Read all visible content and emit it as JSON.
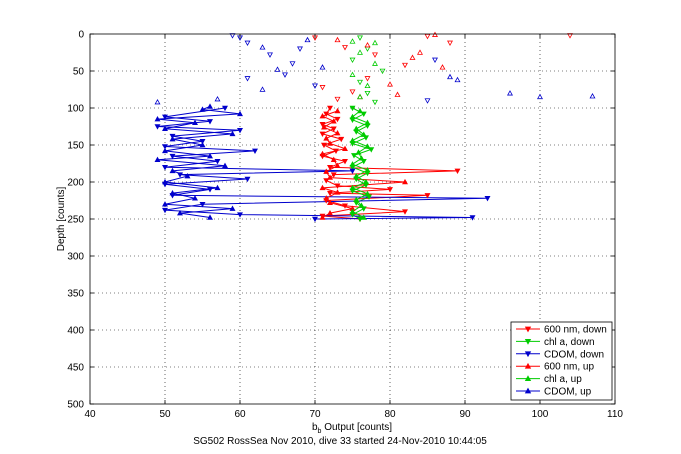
{
  "chart_data": {
    "type": "scatter",
    "title": "",
    "caption": "SG502 RossSea Nov 2010, dive 33 started 24-Nov-2010 10:44:05",
    "xlabel_main": "b",
    "xlabel_sub": "b",
    "xlabel_rest": " Output [counts]",
    "ylabel": "Depth [counts]",
    "xlim": [
      40,
      110
    ],
    "ylim": [
      0,
      500
    ],
    "y_reversed": true,
    "grid": true,
    "xticks": [
      "40",
      "50",
      "60",
      "70",
      "80",
      "90",
      "100",
      "110"
    ],
    "yticks": [
      "0",
      "50",
      "100",
      "150",
      "200",
      "250",
      "300",
      "350",
      "400",
      "450",
      "500"
    ],
    "legend_position": "bottom-right",
    "series": [
      {
        "name": "600 nm, down",
        "color": "#ff0000",
        "marker": "triangle-down",
        "lines_depth_min": 95,
        "lines_depth_max": 250,
        "points": [
          [
            72,
            100
          ],
          [
            71.5,
            108
          ],
          [
            73,
            115
          ],
          [
            71,
            122
          ],
          [
            72.5,
            128
          ],
          [
            71,
            135
          ],
          [
            73.5,
            142
          ],
          [
            71.2,
            150
          ],
          [
            72.8,
            158
          ],
          [
            71,
            165
          ],
          [
            74,
            172
          ],
          [
            72,
            180
          ],
          [
            89,
            185
          ],
          [
            72.5,
            190
          ],
          [
            71.5,
            198
          ],
          [
            73,
            205
          ],
          [
            80,
            210
          ],
          [
            72,
            215
          ],
          [
            85,
            218
          ],
          [
            71.5,
            225
          ],
          [
            74,
            232
          ],
          [
            82,
            240
          ],
          [
            71,
            246
          ],
          [
            76,
            250
          ],
          [
            70,
            5
          ],
          [
            74,
            18
          ],
          [
            78,
            28
          ],
          [
            82,
            42
          ],
          [
            77,
            60
          ],
          [
            75,
            78
          ],
          [
            73,
            88
          ],
          [
            85,
            3
          ],
          [
            88,
            12
          ],
          [
            104,
            2
          ],
          [
            71,
            72
          ]
        ]
      },
      {
        "name": "chl a, down",
        "color": "#00cc00",
        "marker": "triangle-down",
        "lines_depth_min": 95,
        "lines_depth_max": 250,
        "points": [
          [
            75,
            100
          ],
          [
            76.5,
            108
          ],
          [
            75,
            116
          ],
          [
            77,
            124
          ],
          [
            75.5,
            132
          ],
          [
            76.8,
            140
          ],
          [
            75,
            148
          ],
          [
            77.5,
            156
          ],
          [
            75.2,
            164
          ],
          [
            76.5,
            172
          ],
          [
            75,
            180
          ],
          [
            77,
            188
          ],
          [
            75.5,
            196
          ],
          [
            76.8,
            204
          ],
          [
            75,
            212
          ],
          [
            77.2,
            220
          ],
          [
            75.5,
            228
          ],
          [
            76.5,
            236
          ],
          [
            75,
            244
          ],
          [
            76,
            250
          ],
          [
            76,
            5
          ],
          [
            77,
            20
          ],
          [
            75,
            35
          ],
          [
            79,
            50
          ],
          [
            76,
            65
          ],
          [
            77,
            80
          ],
          [
            78,
            92
          ]
        ]
      },
      {
        "name": "CDOM, down",
        "color": "#0000cc",
        "marker": "triangle-down",
        "lines_depth_min": 95,
        "lines_depth_max": 250,
        "points": [
          [
            58,
            100
          ],
          [
            50,
            112
          ],
          [
            56,
            118
          ],
          [
            49,
            125
          ],
          [
            60,
            130
          ],
          [
            51,
            138
          ],
          [
            55,
            145
          ],
          [
            50,
            152
          ],
          [
            62,
            158
          ],
          [
            51,
            165
          ],
          [
            57,
            172
          ],
          [
            50,
            180
          ],
          [
            75,
            185
          ],
          [
            52,
            190
          ],
          [
            61,
            196
          ],
          [
            50,
            203
          ],
          [
            56,
            210
          ],
          [
            51,
            218
          ],
          [
            93,
            222
          ],
          [
            55,
            230
          ],
          [
            50,
            238
          ],
          [
            60,
            244
          ],
          [
            91,
            248
          ],
          [
            70,
            250
          ],
          [
            59,
            2
          ],
          [
            60,
            5
          ],
          [
            61,
            12
          ],
          [
            64,
            28
          ],
          [
            67,
            40
          ],
          [
            66,
            55
          ],
          [
            70,
            70
          ],
          [
            85,
            90
          ],
          [
            61,
            60
          ],
          [
            68,
            20
          ],
          [
            86,
            35
          ]
        ]
      },
      {
        "name": "600 nm, up",
        "color": "#ff0000",
        "marker": "triangle-up",
        "lines_depth_min": 95,
        "lines_depth_max": 250,
        "points": [
          [
            73,
            104
          ],
          [
            71,
            111
          ],
          [
            72.5,
            118
          ],
          [
            71.2,
            126
          ],
          [
            73,
            134
          ],
          [
            71.5,
            141
          ],
          [
            72,
            148
          ],
          [
            74,
            155
          ],
          [
            71,
            162
          ],
          [
            72.5,
            170
          ],
          [
            73,
            178
          ],
          [
            71.5,
            186
          ],
          [
            72,
            194
          ],
          [
            82,
            200
          ],
          [
            71,
            208
          ],
          [
            73,
            214
          ],
          [
            71.5,
            222
          ],
          [
            72,
            228
          ],
          [
            75,
            236
          ],
          [
            72,
            242
          ],
          [
            71,
            248
          ],
          [
            73,
            8
          ],
          [
            77,
            15
          ],
          [
            83,
            32
          ],
          [
            87,
            45
          ],
          [
            80,
            68
          ],
          [
            76,
            85
          ],
          [
            84,
            25
          ],
          [
            81,
            82
          ],
          [
            86,
            1
          ]
        ]
      },
      {
        "name": "chl a, up",
        "color": "#00cc00",
        "marker": "triangle-up",
        "lines_depth_min": 95,
        "lines_depth_max": 250,
        "points": [
          [
            76,
            104
          ],
          [
            75,
            112
          ],
          [
            77,
            120
          ],
          [
            75.5,
            128
          ],
          [
            76.5,
            136
          ],
          [
            75,
            144
          ],
          [
            77,
            152
          ],
          [
            75.8,
            160
          ],
          [
            76.2,
            168
          ],
          [
            75,
            176
          ],
          [
            77,
            184
          ],
          [
            75.5,
            192
          ],
          [
            76.8,
            200
          ],
          [
            75,
            208
          ],
          [
            77,
            216
          ],
          [
            75.5,
            224
          ],
          [
            76.2,
            232
          ],
          [
            75,
            240
          ],
          [
            76.5,
            248
          ],
          [
            75,
            10
          ],
          [
            76,
            25
          ],
          [
            78,
            40
          ],
          [
            75,
            55
          ],
          [
            77,
            70
          ],
          [
            76,
            85
          ],
          [
            78,
            12
          ]
        ]
      },
      {
        "name": "CDOM, up",
        "color": "#0000cc",
        "marker": "triangle-up",
        "lines_depth_min": 95,
        "lines_depth_max": 250,
        "points": [
          [
            55,
            102
          ],
          [
            60,
            108
          ],
          [
            49,
            115
          ],
          [
            54,
            120
          ],
          [
            50,
            128
          ],
          [
            59,
            135
          ],
          [
            51,
            142
          ],
          [
            55,
            150
          ],
          [
            50,
            158
          ],
          [
            56,
            165
          ],
          [
            49,
            170
          ],
          [
            58,
            178
          ],
          [
            51,
            185
          ],
          [
            53,
            192
          ],
          [
            50,
            200
          ],
          [
            57,
            208
          ],
          [
            51,
            215
          ],
          [
            54,
            222
          ],
          [
            50,
            230
          ],
          [
            59,
            236
          ],
          [
            52,
            242
          ],
          [
            56,
            248
          ],
          [
            49,
            92
          ],
          [
            56,
            98
          ],
          [
            57,
            88
          ],
          [
            63,
            18
          ],
          [
            65,
            48
          ],
          [
            71,
            45
          ],
          [
            88,
            58
          ],
          [
            89,
            62
          ],
          [
            100,
            85
          ],
          [
            107,
            84
          ],
          [
            96,
            80
          ],
          [
            69,
            8
          ],
          [
            63,
            75
          ]
        ]
      }
    ]
  }
}
